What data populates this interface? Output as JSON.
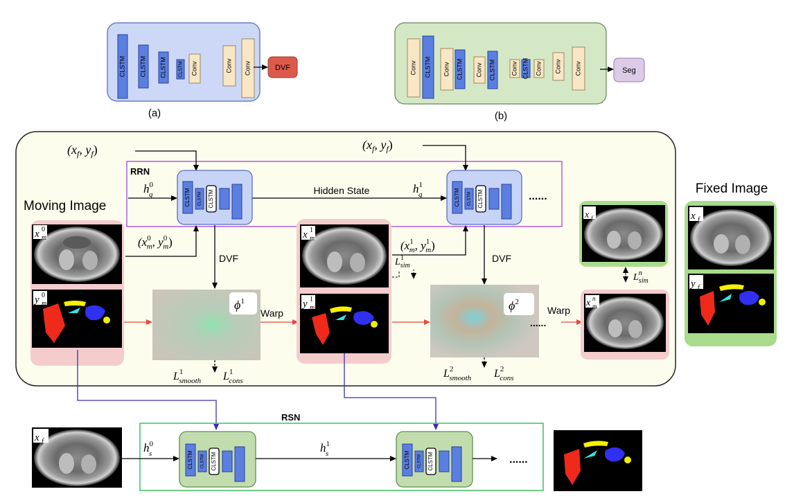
{
  "panel_a": {
    "caption": "(a)",
    "layers": [
      "CLSTM",
      "CLSTM",
      "CLSTM",
      "CLSTM",
      "Conv",
      "Conv",
      "Conv"
    ],
    "output": "DVF"
  },
  "panel_b": {
    "caption": "(b)",
    "layers": [
      "Conv",
      "CLSTM",
      "Conv",
      "CLSTM",
      "Conv",
      "CLSTM",
      "Conv",
      "CLSTM",
      "Conv",
      "Conv",
      "Conv"
    ],
    "output": "Seg"
  },
  "main": {
    "rrn_label": "RRN",
    "rsn_label": "RSN",
    "moving_image_label": "Moving Image",
    "fixed_image_label": "Fixed Image",
    "hidden_state_label": "Hidden State",
    "dvf_label": "DVF",
    "warp_label": "Warp",
    "ellipsis": "......",
    "cell_layers": [
      "CLSTM",
      "CLSTM",
      "CLSTM"
    ],
    "inputs": {
      "fixed_pair": "(x",
      "fixed_sub_x": "f",
      "fixed_mid": ", y",
      "fixed_sub_y": "f",
      "fixed_close": ")"
    }
  },
  "colors": {
    "clstm_blue": "#5b7fe0",
    "conv_beige": "#f8e6c4",
    "panel_a_bg": "#cdd8f7",
    "panel_b_bg": "#d4e8c6",
    "dvf_red": "#dd5a4a",
    "seg_purple": "#dccbe6",
    "main_bg": "#fdfdee",
    "rrn_border": "#b05ce0",
    "rsn_border": "#3cc060",
    "pink_group": "#f4cccc",
    "green_group": "#a8dc8c",
    "warp_arrow": "#e8473a",
    "connector_blue": "#3a2fb0"
  }
}
